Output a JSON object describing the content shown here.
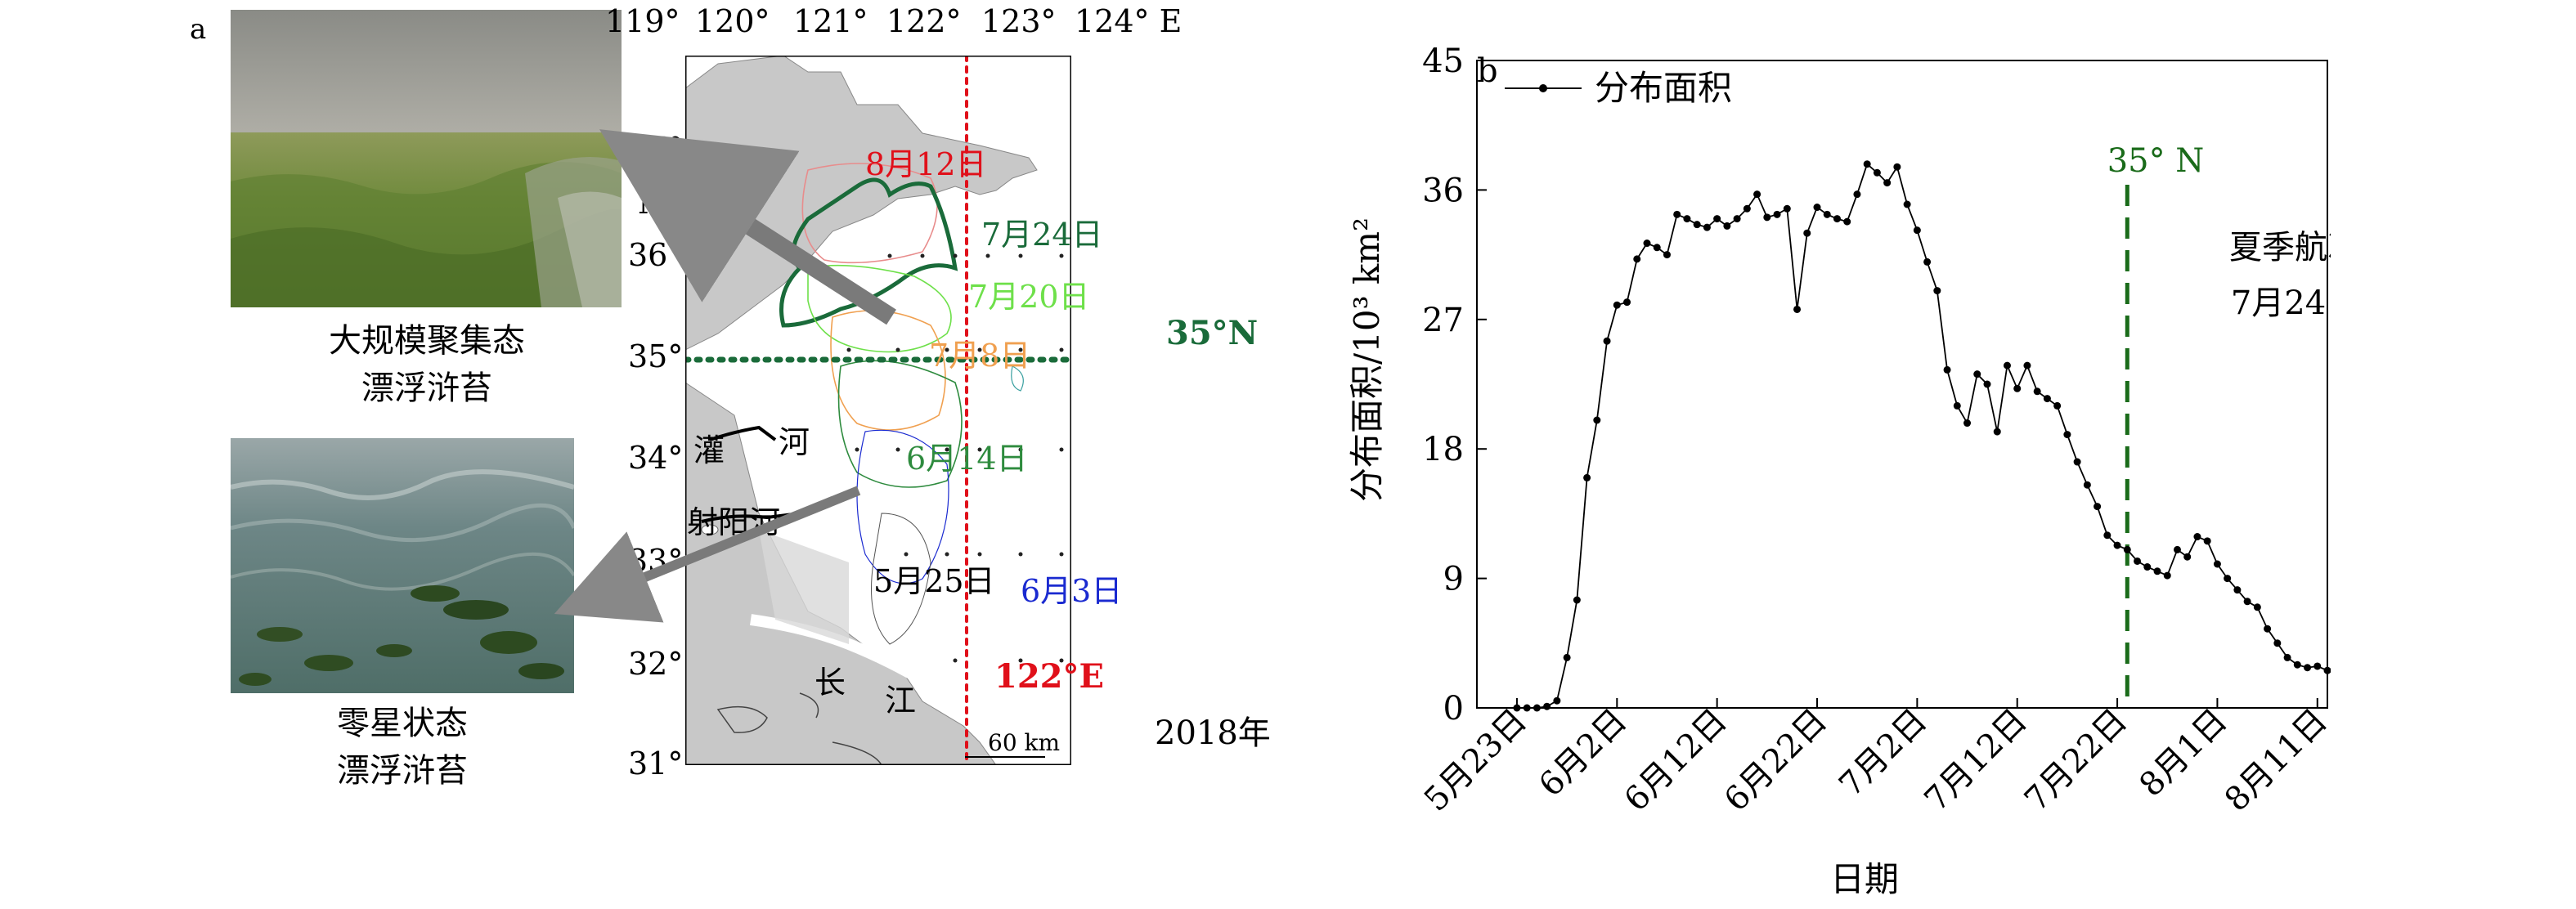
{
  "panel_a": {
    "letter": "a",
    "photo_top_caption": [
      "大规模聚集态",
      "漂浮浒苔"
    ],
    "photo_bottom_caption": [
      "零星状态",
      "漂浮浒苔"
    ],
    "lon_labels": [
      "119°",
      "120°",
      "121°",
      "122°",
      "123°",
      "124° E"
    ],
    "lat_labels": [
      "37°",
      "36°",
      "35°",
      "34°",
      "33°",
      "32°",
      "31°"
    ],
    "north_label": "N",
    "date_labels": {
      "aug12": "8月12日",
      "jul24": "7月24日",
      "jul20": "7月20日",
      "jul8": "7月8日",
      "jun14": "6月14日",
      "may25": "5月25日",
      "jun3": "6月3日"
    },
    "line_35n": "35°N",
    "line_122e": "122°E",
    "river_guan": "灌",
    "river_he": "河",
    "river_sheyang": "射阳河",
    "chang": "长",
    "jiang": "江",
    "scale": "60 km",
    "year": "2018年",
    "colors": {
      "aug12": "#e0101a",
      "jul24": "#1a6b3a",
      "jul20": "#6ee04a",
      "jul8": "#f0a050",
      "jun14": "#2e8b3e",
      "jun3": "#1a2ad0",
      "line35": "#1a6b3a",
      "line122": "#e0101a",
      "land": "#c8c8c8"
    }
  },
  "panel_b": {
    "letter": "b",
    "legend_label": "分布面积",
    "ylabel": "分布面积/10³ km²",
    "xlabel": "日期",
    "vline_label": "35° N",
    "annotation": [
      "夏季航次",
      "7月24日"
    ],
    "vline_color": "#1a6b1a"
  },
  "chart_data": {
    "type": "line",
    "ylim": [
      0,
      45
    ],
    "yticks": [
      0,
      9,
      18,
      27,
      36,
      45
    ],
    "xlim": [
      -4,
      81
    ],
    "x_tick_positions": [
      0,
      10,
      20,
      30,
      40,
      50,
      60,
      70,
      80
    ],
    "x_tick_labels": [
      "5月23日",
      "6月2日",
      "6月12日",
      "6月22日",
      "7月2日",
      "7月12日",
      "7月22日",
      "8月1日",
      "8月11日"
    ],
    "vline_x": 61,
    "series": [
      {
        "name": "分布面积",
        "x": [
          0,
          1,
          2,
          3,
          4,
          5,
          6,
          7,
          8,
          9,
          10,
          11,
          12,
          13,
          14,
          15,
          16,
          17,
          18,
          19,
          20,
          21,
          22,
          23,
          24,
          25,
          26,
          27,
          28,
          29,
          30,
          31,
          32,
          33,
          34,
          35,
          36,
          37,
          38,
          39,
          40,
          41,
          42,
          43,
          44,
          45,
          46,
          47,
          48,
          49,
          50,
          51,
          52,
          53,
          54,
          55,
          56,
          57,
          58,
          59,
          60,
          61,
          62,
          63,
          64,
          65,
          66,
          67,
          68,
          69,
          70,
          71,
          72,
          73,
          74,
          75,
          76,
          77,
          78,
          79,
          80,
          81
        ],
        "values": [
          0,
          0,
          0,
          0.1,
          0.5,
          3.5,
          7.5,
          16,
          20,
          25.5,
          28,
          28.2,
          31.2,
          32.3,
          32,
          31.5,
          34.3,
          34,
          33.6,
          33.4,
          34,
          33.5,
          34,
          34.7,
          35.7,
          34.1,
          34.3,
          34.7,
          27.7,
          33,
          34.8,
          34.3,
          34,
          33.8,
          35.7,
          37.8,
          37.2,
          36.5,
          37.6,
          35,
          33.2,
          31,
          29,
          23.5,
          21,
          19.8,
          23.2,
          22.5,
          19.2,
          23.8,
          22.2,
          23.8,
          22,
          21.5,
          21,
          19,
          17.1,
          15.5,
          14,
          12,
          11.3,
          11,
          10.2,
          9.8,
          9.5,
          9.2,
          11,
          10.5,
          11.9,
          11.6,
          10,
          9,
          8.2,
          7.4,
          7,
          5.5,
          4.5,
          3.5,
          3,
          2.8,
          2.9,
          2.6
        ]
      }
    ]
  }
}
